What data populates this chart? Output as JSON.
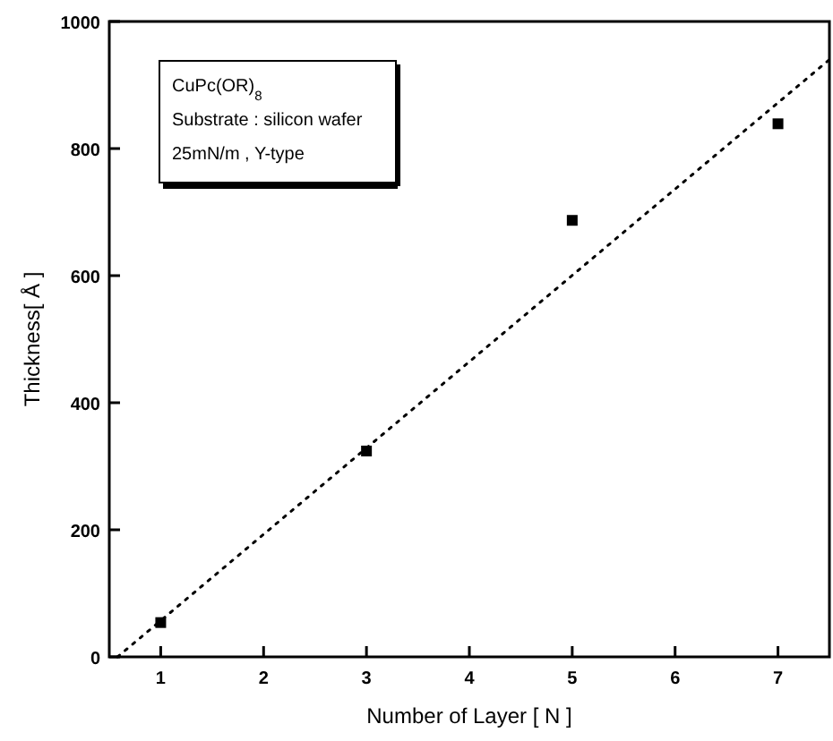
{
  "chart_data": {
    "type": "scatter",
    "xlabel": "Number of Layer [ N ]",
    "ylabel": "Thickness[ Å ]",
    "xlim": [
      0.5,
      7.5
    ],
    "ylim": [
      0,
      1000
    ],
    "xticks": [
      1,
      2,
      3,
      4,
      5,
      6,
      7
    ],
    "yticks": [
      0,
      200,
      400,
      600,
      800,
      1000
    ],
    "grid": false,
    "annotations": [
      "CuPc(OR)$_{8}$",
      "Substrate : silicon wafer",
      "25mN/m , Y-type"
    ],
    "series": [
      {
        "color": "#000000",
        "x": [
          1,
          3,
          5,
          7
        ],
        "values": [
          54,
          324,
          687,
          839
        ],
        "marker": "square"
      },
      {
        "type": "line",
        "color": "#000000",
        "x": [
          0.58,
          7.5
        ],
        "values": [
          0,
          940
        ],
        "line_style": "dotted"
      }
    ]
  }
}
